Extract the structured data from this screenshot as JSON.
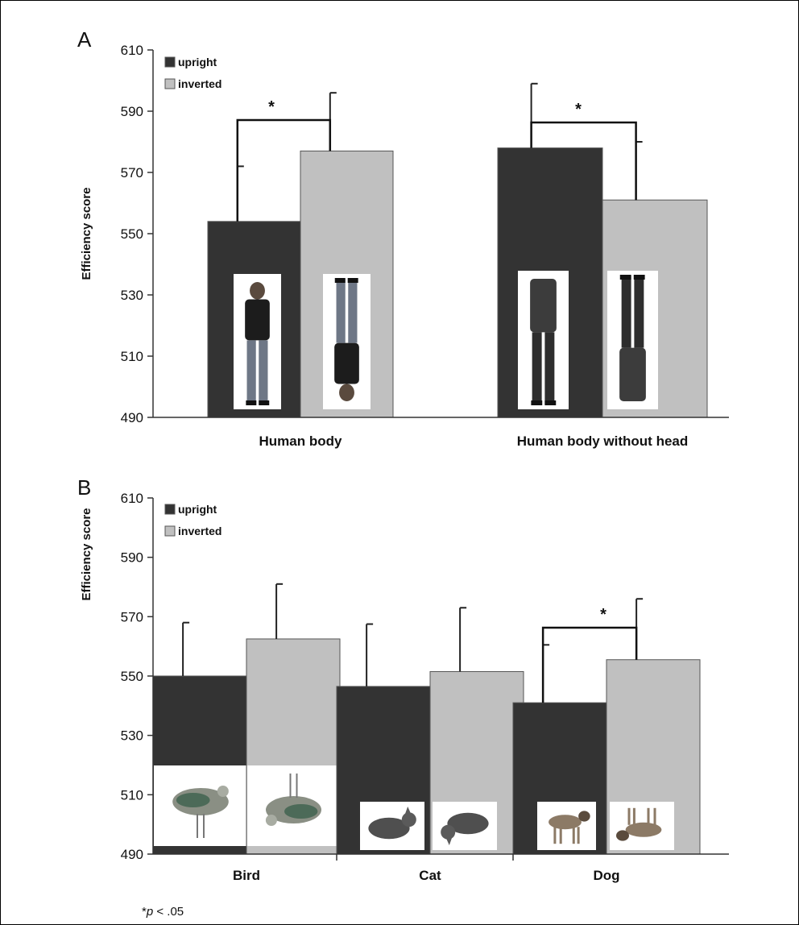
{
  "chart_data": [
    {
      "type": "bar",
      "panel_label": "A",
      "ylabel": "Efficiency score",
      "ylim": [
        490,
        610
      ],
      "yticks": [
        490,
        510,
        530,
        550,
        570,
        590,
        610
      ],
      "categories": [
        "Human body",
        "Human body without head"
      ],
      "series": [
        {
          "name": "upright",
          "color": "#333333",
          "values": [
            554,
            578
          ],
          "error": [
            18,
            21
          ]
        },
        {
          "name": "inverted",
          "color": "#c0c0c0",
          "values": [
            577,
            561
          ],
          "error": [
            19,
            19
          ]
        }
      ],
      "significance": [
        {
          "category": "Human body",
          "label": "*"
        },
        {
          "category": "Human body without head",
          "label": "*"
        }
      ],
      "stimuli": [
        "upright woman photo",
        "inverted woman photo",
        "upright headless body photo",
        "inverted headless body photo"
      ],
      "legend": "top-left"
    },
    {
      "type": "bar",
      "panel_label": "B",
      "ylabel": "Efficiency score",
      "ylim": [
        490,
        610
      ],
      "yticks": [
        490,
        510,
        530,
        550,
        570,
        590,
        610
      ],
      "categories": [
        "Bird",
        "Cat",
        "Dog"
      ],
      "series": [
        {
          "name": "upright",
          "color": "#333333",
          "values": [
            550,
            546.5,
            541
          ],
          "error": [
            18,
            21,
            19.5
          ]
        },
        {
          "name": "inverted",
          "color": "#c0c0c0",
          "values": [
            562.5,
            551.5,
            555.5
          ],
          "error": [
            18.5,
            21.5,
            20.5
          ]
        }
      ],
      "significance": [
        {
          "category": "Dog",
          "label": "*"
        }
      ],
      "stimuli": [
        "upright bird photo",
        "inverted bird photo",
        "upright cat photo",
        "inverted cat photo",
        "upright dog photo",
        "inverted dog photo"
      ],
      "legend": "top-left"
    }
  ],
  "footnote": {
    "prefix": "*",
    "p": "p",
    "rest": " < .05"
  }
}
